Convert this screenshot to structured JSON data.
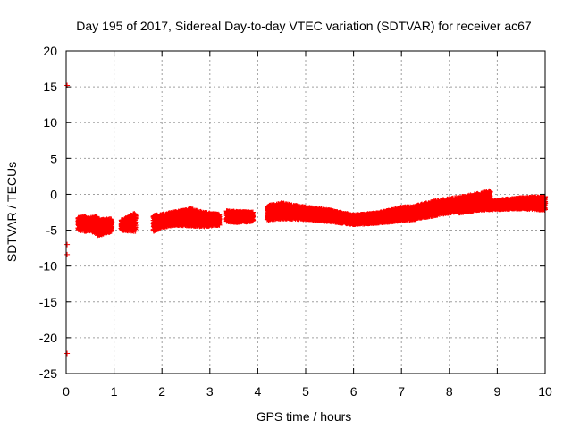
{
  "chart_data": {
    "type": "scatter",
    "title": "Day 195 of 2017, Sidereal Day-to-day VTEC variation (SDTVAR) for receiver ac67",
    "xlabel": "GPS time / hours",
    "ylabel": "SDTVAR / TECUs",
    "xlim": [
      0,
      10
    ],
    "ylim": [
      -25,
      20
    ],
    "xticks": [
      0,
      1,
      2,
      3,
      4,
      5,
      6,
      7,
      8,
      9,
      10
    ],
    "yticks": [
      -25,
      -20,
      -15,
      -10,
      -5,
      0,
      5,
      10,
      15,
      20
    ],
    "grid": true,
    "legend": "none",
    "marker": "plus",
    "color": "#ff0000",
    "outliers": [
      {
        "x": 0.02,
        "y": 15.2
      },
      {
        "x": 0.02,
        "y": -7.0
      },
      {
        "x": 0.02,
        "y": -8.4
      },
      {
        "x": 0.02,
        "y": -22.2
      }
    ],
    "bands": [
      {
        "x": [
          0.25,
          0.42
        ],
        "lower": [
          -5.0,
          -5.2
        ],
        "upper": [
          -3.2,
          -3.0
        ]
      },
      {
        "x": [
          0.42,
          0.65
        ],
        "lower": [
          -5.0,
          -5.4
        ],
        "upper": [
          -3.4,
          -3.0
        ]
      },
      {
        "x": [
          0.65,
          0.95
        ],
        "lower": [
          -5.8,
          -5.2
        ],
        "upper": [
          -3.6,
          -3.4
        ]
      },
      {
        "x": [
          1.15,
          1.45
        ],
        "lower": [
          -5.0,
          -5.2
        ],
        "upper": [
          -3.6,
          -2.6
        ]
      },
      {
        "x": [
          1.82,
          2.0,
          2.3,
          2.6,
          2.85,
          3.2
        ],
        "lower": [
          -5.2,
          -4.6,
          -4.3,
          -4.4,
          -4.5,
          -4.3
        ],
        "upper": [
          -3.0,
          -2.8,
          -2.4,
          -2.0,
          -2.5,
          -2.8
        ]
      },
      {
        "x": [
          3.35,
          3.55,
          3.9
        ],
        "lower": [
          -3.8,
          -3.9,
          -3.8
        ],
        "upper": [
          -2.3,
          -2.4,
          -2.5
        ]
      },
      {
        "x": [
          4.2,
          4.5,
          5.0,
          5.5,
          6.0,
          6.5,
          7.0,
          7.3
        ],
        "lower": [
          -3.6,
          -3.4,
          -3.5,
          -3.8,
          -4.2,
          -4.0,
          -3.7,
          -3.5
        ],
        "upper": [
          -1.6,
          -1.2,
          -1.8,
          -2.2,
          -2.9,
          -2.6,
          -1.8,
          -1.7
        ]
      },
      {
        "x": [
          7.3,
          7.7,
          8.0,
          8.3,
          8.6,
          8.85
        ],
        "lower": [
          -3.4,
          -3.0,
          -2.6,
          -2.3,
          -2.0,
          -1.8
        ],
        "upper": [
          -1.6,
          -0.9,
          -0.6,
          -0.3,
          0.1,
          0.5
        ]
      },
      {
        "x": [
          8.2,
          8.6,
          9.0,
          9.5,
          10.0
        ],
        "lower": [
          -2.6,
          -2.2,
          -2.1,
          -2.0,
          -2.2
        ],
        "upper": [
          -1.2,
          -1.0,
          -0.8,
          -0.5,
          -0.3
        ]
      }
    ]
  }
}
